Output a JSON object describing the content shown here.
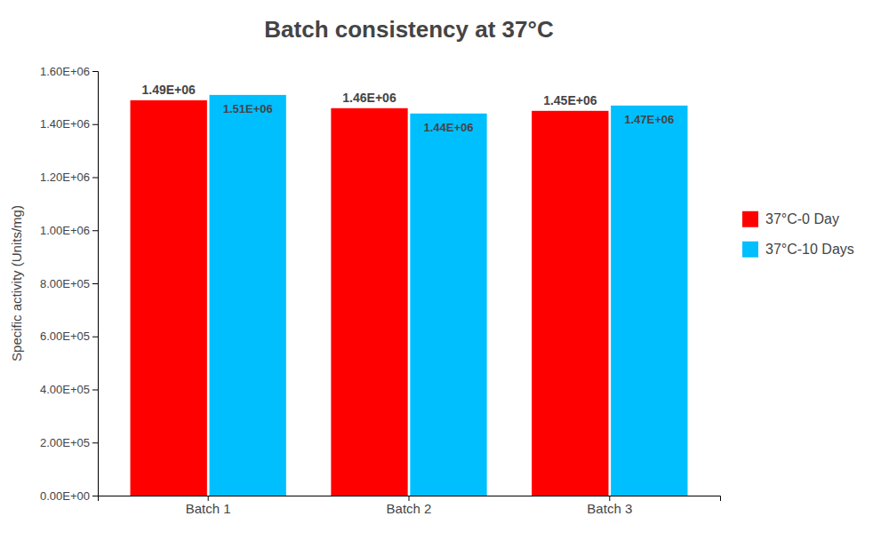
{
  "chart_data": {
    "type": "bar",
    "title": "Batch consistency at 37°C",
    "categories": [
      "Batch 1",
      "Batch 2",
      "Batch 3"
    ],
    "series": [
      {
        "name": "37°C-0 Day",
        "color": "#ff0000",
        "values": [
          1490000,
          1460000,
          1450000
        ],
        "value_labels": [
          "1.49E+06",
          "1.46E+06",
          "1.45E+06"
        ]
      },
      {
        "name": "37°C-10 Days",
        "color": "#00bfff",
        "values": [
          1510000,
          1440000,
          1470000
        ],
        "value_labels": [
          "1.51E+06",
          "1.44E+06",
          "1.47E+06"
        ]
      }
    ],
    "ylabel": "Specific activity (Units/mg)",
    "ylim": [
      0,
      1600000
    ],
    "yticks": [
      {
        "value": 0,
        "label": "0.00E+00"
      },
      {
        "value": 200000,
        "label": "2.00E+05"
      },
      {
        "value": 400000,
        "label": "4.00E+05"
      },
      {
        "value": 600000,
        "label": "6.00E+05"
      },
      {
        "value": 800000,
        "label": "8.00E+05"
      },
      {
        "value": 1000000,
        "label": "1.00E+06"
      },
      {
        "value": 1200000,
        "label": "1.20E+06"
      },
      {
        "value": 1400000,
        "label": "1.40E+06"
      },
      {
        "value": 1600000,
        "label": "1.60E+06"
      }
    ],
    "grid": false,
    "legend": "right",
    "data_labels": true
  }
}
